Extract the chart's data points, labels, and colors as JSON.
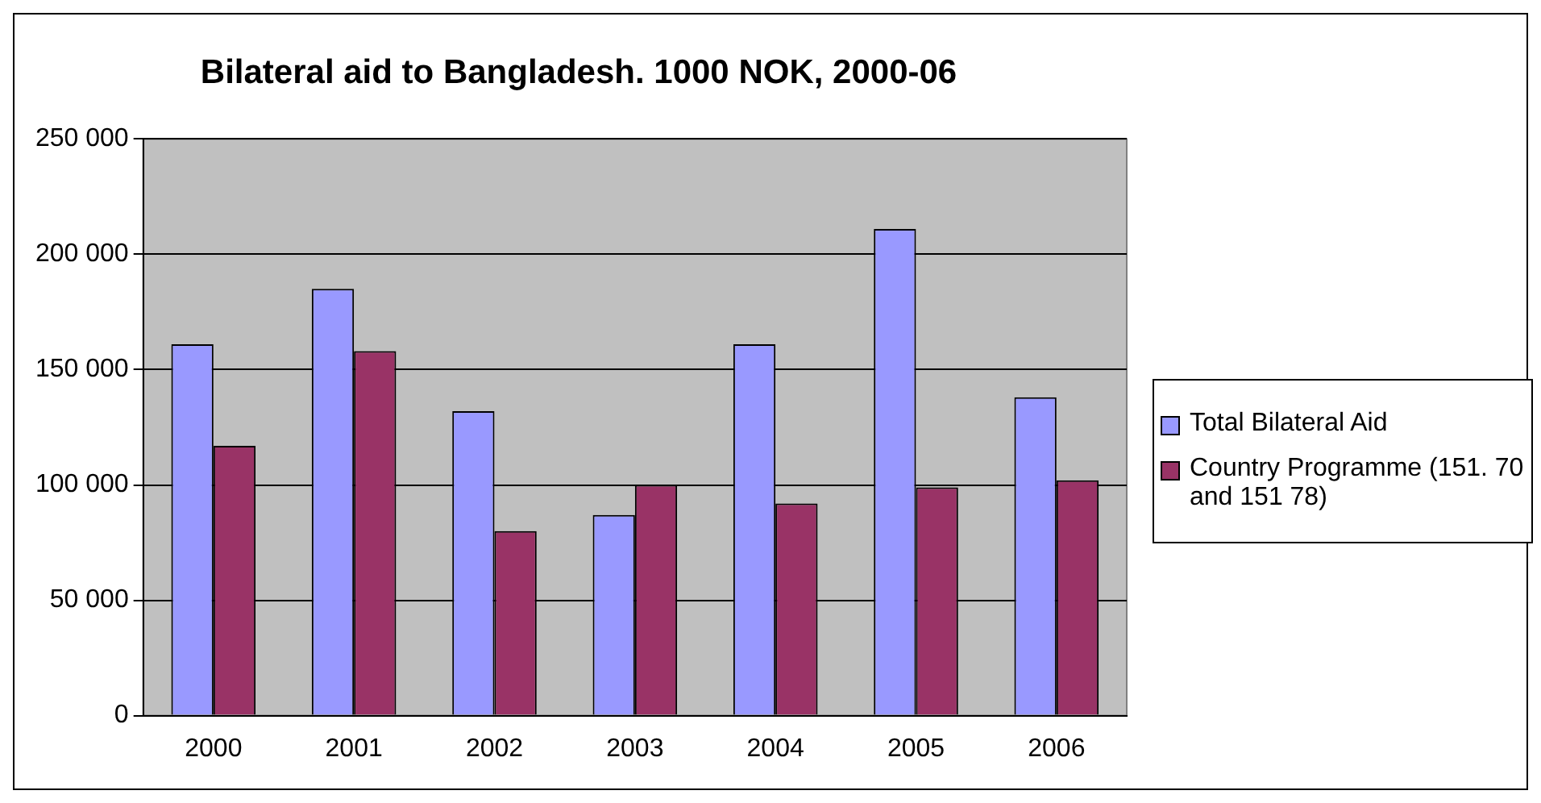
{
  "chart_data": {
    "type": "bar",
    "title": "Bilateral aid to Bangladesh. 1000 NOK, 2000-06",
    "categories": [
      "2000",
      "2001",
      "2002",
      "2003",
      "2004",
      "2005",
      "2006"
    ],
    "series": [
      {
        "name": "Total Bilateral Aid",
        "color": "#9999ff",
        "values": [
          161000,
          185000,
          132000,
          87000,
          161000,
          211000,
          138000
        ]
      },
      {
        "name": "Country Programme (151. 70 and 151 78)",
        "color": "#993366",
        "values": [
          117000,
          158000,
          80000,
          100000,
          92000,
          99000,
          102000
        ]
      }
    ],
    "ylim": [
      0,
      250000
    ],
    "yticks": [
      {
        "value": 0,
        "label": "0"
      },
      {
        "value": 50000,
        "label": "50 000"
      },
      {
        "value": 100000,
        "label": "100 000"
      },
      {
        "value": 150000,
        "label": "150 000"
      },
      {
        "value": 200000,
        "label": "200 000"
      },
      {
        "value": 250000,
        "label": "250 000"
      }
    ],
    "grid": "y",
    "legend": "right"
  }
}
